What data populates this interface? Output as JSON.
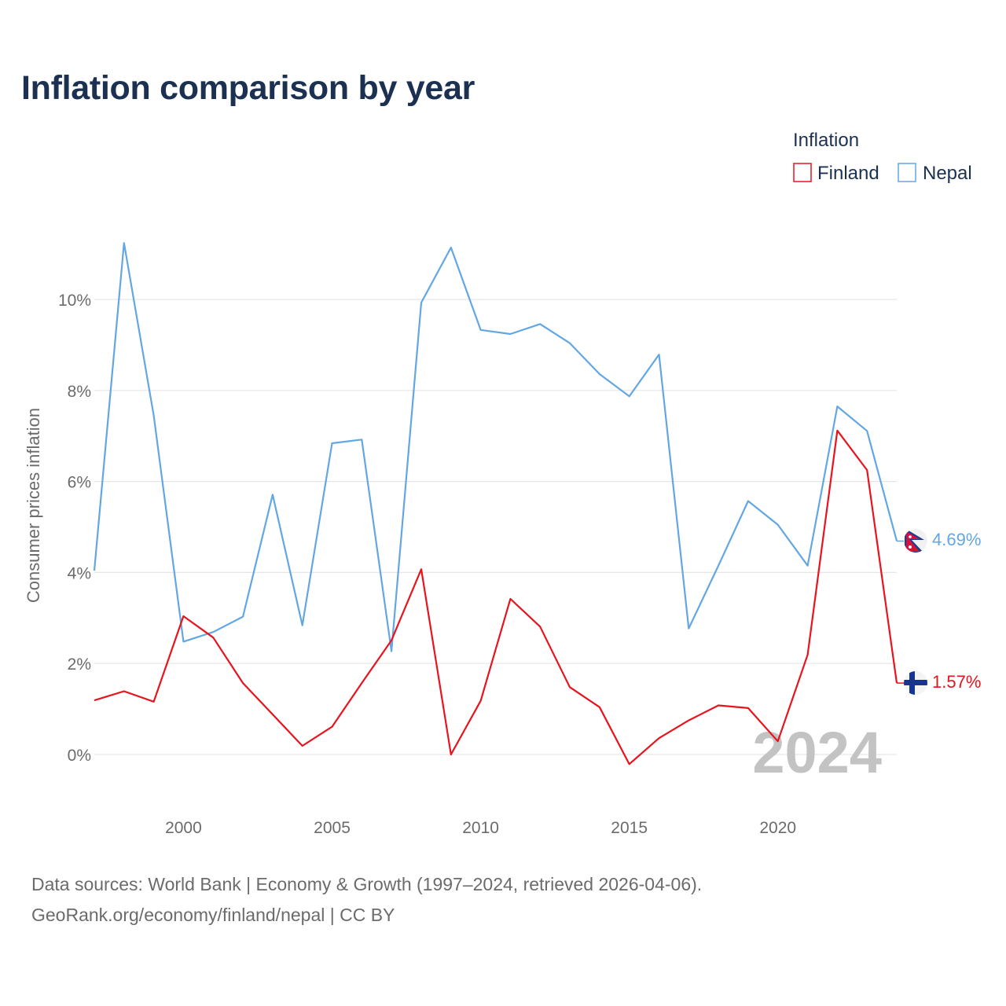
{
  "title": "Inflation comparison by year",
  "legend": {
    "title": "Inflation",
    "items": [
      {
        "name": "Finland",
        "color": "#e8141d"
      },
      {
        "name": "Nepal",
        "color": "#62a7e4"
      }
    ]
  },
  "chart_data": {
    "type": "line",
    "title": "Inflation comparison by year",
    "xlabel": "",
    "ylabel": "Consumer prices inflation",
    "xlim": [
      1997,
      2024
    ],
    "ylim": [
      -1.4,
      12
    ],
    "x_ticks": [
      2000,
      2005,
      2010,
      2015,
      2020
    ],
    "y_ticks": [
      0,
      2,
      4,
      6,
      8,
      10
    ],
    "y_tick_labels": [
      "0%",
      "2%",
      "4%",
      "6%",
      "8%",
      "10%"
    ],
    "grid": true,
    "legend_position": "top-right",
    "year_annotation": "2024",
    "x": [
      1997,
      1998,
      1999,
      2000,
      2001,
      2002,
      2003,
      2004,
      2005,
      2006,
      2007,
      2008,
      2009,
      2010,
      2011,
      2012,
      2013,
      2014,
      2015,
      2016,
      2017,
      2018,
      2019,
      2020,
      2021,
      2022,
      2023,
      2024
    ],
    "series": [
      {
        "name": "Nepal",
        "color": "#62a7e4",
        "end_label": "4.69%",
        "flag": "nepal-flag",
        "values": [
          4.04,
          11.24,
          7.45,
          2.48,
          2.69,
          3.03,
          5.71,
          2.84,
          6.84,
          6.92,
          2.27,
          9.93,
          11.14,
          9.33,
          9.24,
          9.46,
          9.04,
          8.36,
          7.87,
          8.79,
          2.77,
          4.15,
          5.57,
          5.05,
          4.15,
          7.65,
          7.11,
          4.69
        ]
      },
      {
        "name": "Finland",
        "color": "#e8141d",
        "end_label": "1.57%",
        "flag": "finland-flag",
        "values": [
          1.19,
          1.39,
          1.16,
          3.04,
          2.57,
          1.57,
          0.88,
          0.19,
          0.61,
          1.57,
          2.51,
          4.07,
          0.0,
          1.18,
          3.42,
          2.81,
          1.48,
          1.04,
          -0.21,
          0.36,
          0.75,
          1.08,
          1.02,
          0.29,
          2.19,
          7.12,
          6.25,
          1.57
        ]
      }
    ]
  },
  "source": {
    "line1": "Data sources: World Bank | Economy & Growth (1997–2024, retrieved 2026-04-06).",
    "line2": "GeoRank.org/economy/finland/nepal | CC BY"
  }
}
